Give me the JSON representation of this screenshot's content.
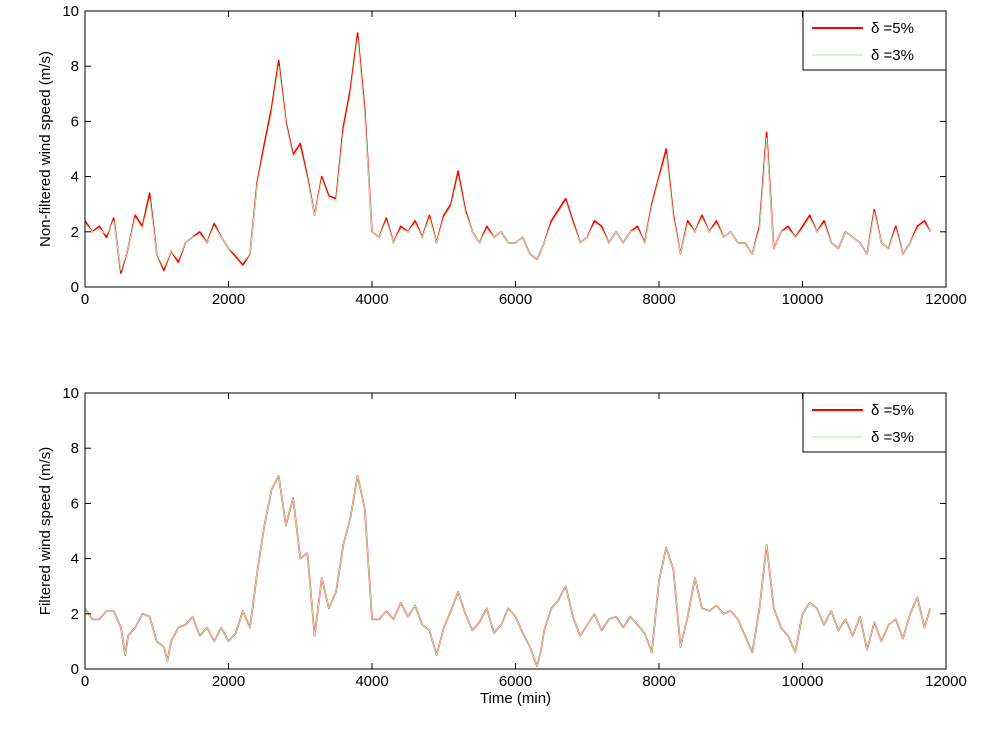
{
  "chart_data": [
    {
      "type": "line",
      "title": "",
      "xlabel": "",
      "ylabel": "Non-filtered wind speed (m/s)",
      "xlim": [
        0,
        12000
      ],
      "ylim": [
        0,
        10
      ],
      "xticks": [
        0,
        2000,
        4000,
        6000,
        8000,
        10000,
        12000
      ],
      "yticks": [
        0,
        2,
        4,
        6,
        8,
        10
      ],
      "grid": false,
      "legend_position": "top-right",
      "series": [
        {
          "name": "δ =5%",
          "color": "#ff0000",
          "x": [
            0,
            100,
            200,
            300,
            400,
            500,
            600,
            700,
            800,
            900,
            1000,
            1100,
            1200,
            1300,
            1400,
            1500,
            1600,
            1700,
            1800,
            1900,
            2000,
            2100,
            2200,
            2300,
            2400,
            2500,
            2600,
            2700,
            2800,
            2900,
            3000,
            3100,
            3200,
            3300,
            3400,
            3500,
            3600,
            3700,
            3800,
            3900,
            4000,
            4100,
            4200,
            4300,
            4400,
            4500,
            4600,
            4700,
            4800,
            4900,
            5000,
            5100,
            5200,
            5300,
            5400,
            5500,
            5600,
            5700,
            5800,
            5900,
            6000,
            6100,
            6200,
            6300,
            6400,
            6500,
            6600,
            6700,
            6800,
            6900,
            7000,
            7100,
            7200,
            7300,
            7400,
            7500,
            7600,
            7700,
            7800,
            7900,
            8000,
            8100,
            8200,
            8300,
            8400,
            8500,
            8600,
            8700,
            8800,
            8900,
            9000,
            9100,
            9200,
            9300,
            9400,
            9500,
            9600,
            9700,
            9800,
            9900,
            10000,
            10100,
            10200,
            10300,
            10400,
            10500,
            10600,
            10700,
            10800,
            10900,
            11000,
            11100,
            11200,
            11300,
            11400,
            11500,
            11600,
            11700,
            11780
          ],
          "y": [
            2.4,
            2.0,
            2.2,
            1.8,
            2.5,
            0.5,
            1.4,
            2.6,
            2.2,
            3.4,
            1.2,
            0.6,
            1.3,
            0.9,
            1.6,
            1.8,
            2.0,
            1.6,
            2.3,
            1.8,
            1.4,
            1.1,
            0.8,
            1.2,
            3.8,
            5.2,
            6.5,
            8.2,
            6.0,
            4.8,
            5.2,
            4.0,
            2.6,
            4.0,
            3.3,
            3.2,
            5.8,
            7.2,
            9.2,
            6.4,
            2.0,
            1.8,
            2.5,
            1.6,
            2.2,
            2.0,
            2.4,
            1.8,
            2.6,
            1.6,
            2.6,
            3.0,
            4.2,
            2.8,
            2.0,
            1.6,
            2.2,
            1.8,
            2.0,
            1.6,
            1.6,
            1.8,
            1.2,
            1.0,
            1.6,
            2.4,
            2.8,
            3.2,
            2.4,
            1.6,
            1.8,
            2.4,
            2.2,
            1.6,
            2.0,
            1.6,
            2.0,
            2.2,
            1.6,
            3.0,
            4.0,
            5.0,
            2.6,
            1.2,
            2.4,
            2.0,
            2.6,
            2.0,
            2.4,
            1.8,
            2.0,
            1.6,
            1.6,
            1.2,
            2.2,
            5.6,
            1.4,
            2.0,
            2.2,
            1.8,
            2.2,
            2.6,
            2.0,
            2.4,
            1.6,
            1.4,
            2.0,
            1.8,
            1.6,
            1.2,
            2.8,
            1.6,
            1.4,
            2.2,
            1.2,
            1.6,
            2.2,
            2.4,
            2.0
          ]
        },
        {
          "name": "δ =3%",
          "color": "#b8f0b8",
          "x": [
            0,
            100,
            200,
            300,
            400,
            500,
            600,
            700,
            800,
            900,
            1000,
            1100,
            1200,
            1300,
            1400,
            1500,
            1600,
            1700,
            1800,
            1900,
            2000,
            2100,
            2200,
            2300,
            2400,
            2500,
            2600,
            2700,
            2800,
            2900,
            3000,
            3100,
            3200,
            3300,
            3400,
            3500,
            3600,
            3700,
            3800,
            3900,
            4000,
            4100,
            4200,
            4300,
            4400,
            4500,
            4600,
            4700,
            4800,
            4900,
            5000,
            5100,
            5200,
            5300,
            5400,
            5500,
            5600,
            5700,
            5800,
            5900,
            6000,
            6100,
            6200,
            6300,
            6400,
            6500,
            6600,
            6700,
            6800,
            6900,
            7000,
            7100,
            7200,
            7300,
            7400,
            7500,
            7600,
            7700,
            7800,
            7900,
            8000,
            8100,
            8200,
            8300,
            8400,
            8500,
            8600,
            8700,
            8800,
            8900,
            9000,
            9100,
            9200,
            9300,
            9400,
            9500,
            9600,
            9700,
            9800,
            9900,
            10000,
            10100,
            10200,
            10300,
            10400,
            10500,
            10600,
            10700,
            10800,
            10900,
            11000,
            11100,
            11200,
            11300,
            11400,
            11500,
            11600,
            11700,
            11780
          ],
          "y": [
            2.3,
            2.0,
            2.1,
            1.9,
            2.4,
            0.6,
            1.4,
            2.5,
            2.1,
            3.2,
            1.2,
            0.7,
            1.3,
            1.0,
            1.6,
            1.8,
            1.9,
            1.6,
            2.2,
            1.8,
            1.4,
            1.2,
            0.9,
            1.2,
            3.7,
            5.0,
            6.3,
            8.0,
            5.9,
            4.7,
            5.0,
            3.9,
            2.6,
            3.9,
            3.2,
            3.1,
            5.6,
            7.0,
            9.0,
            6.2,
            2.0,
            1.8,
            2.4,
            1.6,
            2.1,
            2.0,
            2.3,
            1.8,
            2.5,
            1.6,
            2.5,
            2.9,
            4.0,
            2.7,
            2.0,
            1.6,
            2.1,
            1.8,
            2.0,
            1.6,
            1.6,
            1.8,
            1.2,
            1.0,
            1.6,
            2.3,
            2.7,
            3.1,
            2.3,
            1.6,
            1.8,
            2.3,
            2.1,
            1.6,
            2.0,
            1.6,
            2.0,
            2.1,
            1.6,
            2.9,
            3.9,
            4.8,
            2.5,
            1.2,
            2.3,
            2.0,
            2.5,
            2.0,
            2.3,
            1.8,
            2.0,
            1.6,
            1.6,
            1.2,
            2.1,
            5.4,
            1.4,
            2.0,
            2.1,
            1.8,
            2.1,
            2.5,
            2.0,
            2.3,
            1.6,
            1.4,
            2.0,
            1.8,
            1.6,
            1.2,
            2.7,
            1.6,
            1.4,
            2.1,
            1.2,
            1.6,
            2.1,
            2.3,
            2.0
          ]
        }
      ]
    },
    {
      "type": "line",
      "title": "",
      "xlabel": "Time (min)",
      "ylabel": "Filtered wind speed (m/s)",
      "xlim": [
        0,
        12000
      ],
      "ylim": [
        0,
        10
      ],
      "xticks": [
        0,
        2000,
        4000,
        6000,
        8000,
        10000,
        12000
      ],
      "yticks": [
        0,
        2,
        4,
        6,
        8,
        10
      ],
      "grid": false,
      "legend_position": "top-right",
      "series": [
        {
          "name": "δ =5%",
          "color": "#ff0000",
          "x": [
            0,
            100,
            200,
            300,
            400,
            500,
            560,
            600,
            700,
            800,
            900,
            1000,
            1100,
            1150,
            1200,
            1300,
            1400,
            1500,
            1600,
            1700,
            1800,
            1900,
            2000,
            2100,
            2200,
            2300,
            2400,
            2500,
            2600,
            2700,
            2800,
            2900,
            3000,
            3100,
            3200,
            3300,
            3400,
            3500,
            3600,
            3700,
            3800,
            3900,
            4000,
            4100,
            4200,
            4300,
            4400,
            4500,
            4600,
            4700,
            4800,
            4900,
            5000,
            5100,
            5200,
            5300,
            5400,
            5500,
            5600,
            5700,
            5800,
            5900,
            6000,
            6100,
            6200,
            6300,
            6350,
            6400,
            6500,
            6600,
            6700,
            6800,
            6900,
            7000,
            7100,
            7200,
            7300,
            7400,
            7500,
            7600,
            7700,
            7800,
            7900,
            8000,
            8100,
            8200,
            8300,
            8400,
            8500,
            8600,
            8700,
            8800,
            8900,
            9000,
            9100,
            9200,
            9300,
            9400,
            9500,
            9600,
            9700,
            9800,
            9900,
            10000,
            10100,
            10200,
            10300,
            10400,
            10500,
            10600,
            10700,
            10800,
            10900,
            11000,
            11100,
            11200,
            11300,
            11400,
            11500,
            11600,
            11700,
            11780
          ],
          "y": [
            2.2,
            1.8,
            1.8,
            2.1,
            2.1,
            1.5,
            0.5,
            1.2,
            1.5,
            2.0,
            1.9,
            1.0,
            0.8,
            0.3,
            1.0,
            1.5,
            1.6,
            1.9,
            1.2,
            1.5,
            1.0,
            1.5,
            1.0,
            1.3,
            2.1,
            1.5,
            3.5,
            5.2,
            6.5,
            7.0,
            5.2,
            6.2,
            4.0,
            4.2,
            1.2,
            3.3,
            2.2,
            2.8,
            4.5,
            5.5,
            7.0,
            5.8,
            1.8,
            1.8,
            2.1,
            1.8,
            2.4,
            1.9,
            2.3,
            1.6,
            1.4,
            0.5,
            1.5,
            2.1,
            2.8,
            2.0,
            1.4,
            1.7,
            2.2,
            1.3,
            1.6,
            2.2,
            1.9,
            1.3,
            0.8,
            0.1,
            0.6,
            1.4,
            2.2,
            2.5,
            3.0,
            1.9,
            1.2,
            1.6,
            2.0,
            1.4,
            1.8,
            1.9,
            1.5,
            1.9,
            1.6,
            1.3,
            0.6,
            3.2,
            4.4,
            3.6,
            0.8,
            1.9,
            3.3,
            2.2,
            2.1,
            2.3,
            2.0,
            2.1,
            1.8,
            1.2,
            0.6,
            2.2,
            4.5,
            2.2,
            1.5,
            1.2,
            0.6,
            2.0,
            2.4,
            2.2,
            1.6,
            2.1,
            1.4,
            1.8,
            1.2,
            1.9,
            0.7,
            1.7,
            1.0,
            1.6,
            1.8,
            1.1,
            2.0,
            2.6,
            1.5,
            2.2
          ]
        },
        {
          "name": "δ =3%",
          "color": "#b8f0b8",
          "x": [
            0,
            100,
            200,
            300,
            400,
            500,
            560,
            600,
            700,
            800,
            900,
            1000,
            1100,
            1150,
            1200,
            1300,
            1400,
            1500,
            1600,
            1700,
            1800,
            1900,
            2000,
            2100,
            2200,
            2300,
            2400,
            2500,
            2600,
            2700,
            2800,
            2900,
            3000,
            3100,
            3200,
            3300,
            3400,
            3500,
            3600,
            3700,
            3800,
            3900,
            4000,
            4100,
            4200,
            4300,
            4400,
            4500,
            4600,
            4700,
            4800,
            4900,
            5000,
            5100,
            5200,
            5300,
            5400,
            5500,
            5600,
            5700,
            5800,
            5900,
            6000,
            6100,
            6200,
            6300,
            6350,
            6400,
            6500,
            6600,
            6700,
            6800,
            6900,
            7000,
            7100,
            7200,
            7300,
            7400,
            7500,
            7600,
            7700,
            7800,
            7900,
            8000,
            8100,
            8200,
            8300,
            8400,
            8500,
            8600,
            8700,
            8800,
            8900,
            9000,
            9100,
            9200,
            9300,
            9400,
            9500,
            9600,
            9700,
            9800,
            9900,
            10000,
            10100,
            10200,
            10300,
            10400,
            10500,
            10600,
            10700,
            10800,
            10900,
            11000,
            11100,
            11200,
            11300,
            11400,
            11500,
            11600,
            11700,
            11780
          ],
          "y": [
            2.2,
            1.8,
            1.8,
            2.1,
            2.1,
            1.5,
            0.5,
            1.2,
            1.5,
            2.0,
            1.9,
            1.0,
            0.8,
            0.3,
            1.0,
            1.5,
            1.6,
            1.9,
            1.2,
            1.5,
            1.0,
            1.5,
            1.0,
            1.3,
            2.1,
            1.5,
            3.5,
            5.2,
            6.5,
            7.0,
            5.2,
            6.2,
            4.0,
            4.2,
            1.2,
            3.3,
            2.2,
            2.8,
            4.5,
            5.5,
            7.0,
            5.8,
            1.8,
            1.8,
            2.1,
            1.8,
            2.4,
            1.9,
            2.3,
            1.6,
            1.4,
            0.5,
            1.5,
            2.1,
            2.8,
            2.0,
            1.4,
            1.7,
            2.2,
            1.3,
            1.6,
            2.2,
            1.9,
            1.3,
            0.8,
            0.1,
            0.6,
            1.4,
            2.2,
            2.5,
            3.0,
            1.9,
            1.2,
            1.6,
            2.0,
            1.4,
            1.8,
            1.9,
            1.5,
            1.9,
            1.6,
            1.3,
            0.6,
            3.2,
            4.4,
            3.6,
            0.8,
            1.9,
            3.3,
            2.2,
            2.1,
            2.3,
            2.0,
            2.1,
            1.8,
            1.2,
            0.6,
            2.2,
            4.5,
            2.2,
            1.5,
            1.2,
            0.6,
            2.0,
            2.4,
            2.2,
            1.6,
            2.1,
            1.4,
            1.8,
            1.2,
            1.9,
            0.7,
            1.7,
            1.0,
            1.6,
            1.8,
            1.1,
            2.0,
            2.6,
            1.5,
            2.2
          ]
        }
      ]
    }
  ]
}
